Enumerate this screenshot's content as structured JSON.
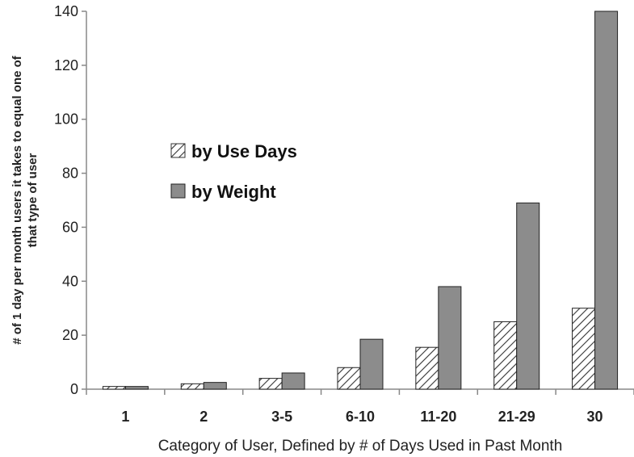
{
  "chart_data": {
    "type": "bar",
    "title": "",
    "xlabel": "Category of User, Defined by # of Days Used in Past Month",
    "ylabel": "# of 1 day per month users it takes to equal one of that type of user",
    "ylabel_lines": [
      "# of 1 day per month users it takes to equal one of",
      "that type of user"
    ],
    "categories": [
      "1",
      "2",
      "3-5",
      "6-10",
      "11-20",
      "21-29",
      "30"
    ],
    "ylim": [
      0,
      140
    ],
    "yticks": [
      0,
      20,
      40,
      60,
      80,
      100,
      120,
      140
    ],
    "grid": false,
    "legend_position": "center-left",
    "series": [
      {
        "name": "by Use Days",
        "fill": "hatched",
        "color": "#333333",
        "values": [
          1,
          2,
          4,
          8,
          15.5,
          25,
          30
        ]
      },
      {
        "name": "by Weight",
        "fill": "solid",
        "color": "#8c8c8c",
        "values": [
          1,
          2.5,
          6,
          18.5,
          38,
          69,
          140
        ]
      }
    ]
  }
}
